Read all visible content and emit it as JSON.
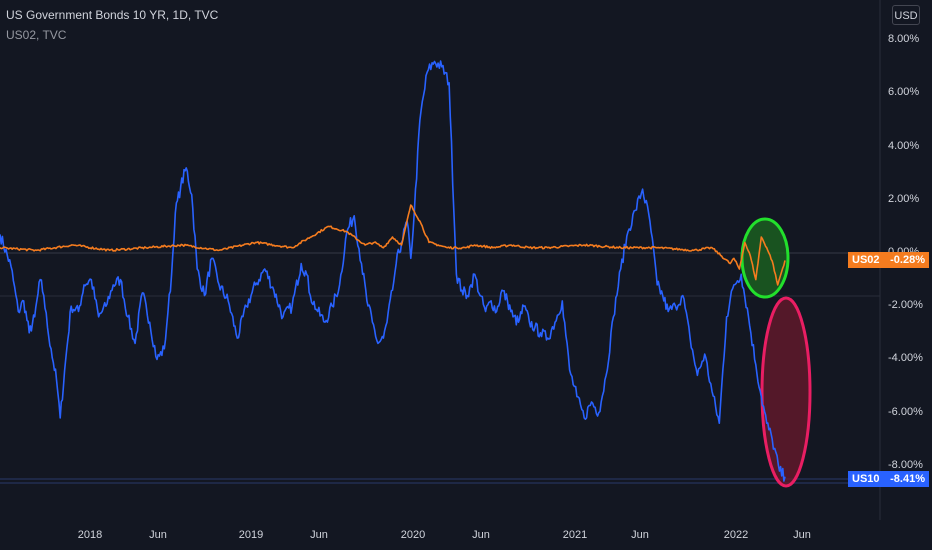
{
  "legend": {
    "title": "US Government Bonds 10 YR, 1D, TVC",
    "subtitle": "US02, TVC"
  },
  "currency": "USD",
  "price_tags": [
    {
      "name": "US02",
      "value": "-0.28%",
      "color": "#f57c1f"
    },
    {
      "name": "US10",
      "value": "-8.41%",
      "color": "#2962ff"
    }
  ],
  "chart_data": {
    "type": "line",
    "y_ticks": [
      "8.00%",
      "6.00%",
      "4.00%",
      "2.00%",
      "0.00%",
      "-2.00%",
      "-4.00%",
      "-6.00%",
      "-8.00%"
    ],
    "x_ticks": [
      "2018",
      "Jun",
      "2019",
      "Jun",
      "2020",
      "Jun",
      "2021",
      "Jun",
      "2022",
      "Jun"
    ],
    "ylim": [
      -9.5,
      8.5
    ],
    "grid": false,
    "series": [
      {
        "name": "US10",
        "color": "#2962ff",
        "x": [
          0,
          0.06,
          0.1,
          0.13,
          0.16,
          0.19,
          0.22,
          0.24,
          0.26,
          0.28,
          0.31,
          0.33,
          0.36,
          0.39,
          0.43,
          0.46,
          0.5,
          0.54,
          0.58,
          0.62,
          0.66,
          0.7,
          0.74,
          0.78,
          0.82,
          0.86,
          0.9,
          0.92,
          0.94,
          0.96,
          0.99,
          1.02,
          1.05,
          1.08,
          1.12,
          1.16,
          1.2,
          1.25,
          1.3,
          1.35,
          1.4,
          1.45,
          1.5,
          1.55,
          1.6,
          1.65,
          1.68,
          1.7,
          1.74,
          1.78,
          1.82,
          1.86,
          1.9,
          1.94,
          1.98,
          2.01,
          2.04,
          2.07,
          2.1,
          2.12,
          2.15,
          2.17,
          2.2,
          2.23,
          2.25,
          2.27,
          2.3,
          2.34,
          2.38,
          2.42,
          2.46,
          2.5,
          2.53,
          2.56,
          2.58,
          2.6,
          2.63,
          2.66,
          2.69,
          2.72,
          2.75,
          2.78,
          2.81,
          2.84,
          2.87,
          2.9,
          2.93,
          2.96,
          3.0,
          3.04,
          3.08,
          3.12,
          3.16,
          3.2,
          3.24,
          3.28,
          3.32,
          3.36,
          3.4,
          3.44,
          3.48,
          3.52,
          3.56,
          3.6,
          3.63,
          3.66,
          3.7,
          3.74,
          3.78,
          3.82,
          3.86,
          3.9,
          3.94,
          3.98,
          4.02,
          4.06,
          4.1,
          4.14,
          4.17,
          4.2,
          4.23,
          4.27,
          4.3
        ],
        "y": [
          0.7,
          -0.5,
          -2.2,
          -1.8,
          -3.0,
          -2.4,
          -1.0,
          -1.6,
          -2.8,
          -3.6,
          -4.8,
          -6.2,
          -4.0,
          -2.0,
          -2.2,
          -1.2,
          -1.0,
          -2.4,
          -2.0,
          -1.2,
          -1.0,
          -2.4,
          -3.4,
          -1.5,
          -2.6,
          -4.0,
          -3.6,
          -2.2,
          -0.8,
          1.5,
          2.5,
          3.2,
          2.2,
          -0.6,
          -1.6,
          -0.2,
          -1.2,
          -1.8,
          -3.2,
          -2.0,
          -1.2,
          -0.6,
          -1.4,
          -2.4,
          -2.0,
          -0.4,
          -0.8,
          -1.6,
          -2.2,
          -2.6,
          -2.0,
          -1.2,
          0.8,
          1.4,
          -0.4,
          -1.8,
          -2.6,
          -3.4,
          -3.2,
          -2.6,
          -1.4,
          -0.4,
          0.4,
          1.2,
          -0.2,
          1.6,
          5.0,
          6.8,
          7.2,
          7.0,
          6.4,
          -0.8,
          -1.4,
          -1.6,
          -1.2,
          -0.8,
          -1.6,
          -2.2,
          -1.8,
          -2.2,
          -1.4,
          -1.8,
          -2.4,
          -2.6,
          -2.0,
          -2.6,
          -2.8,
          -3.0,
          -3.2,
          -2.6,
          -1.8,
          -4.4,
          -5.4,
          -6.2,
          -5.6,
          -6.0,
          -4.6,
          -2.4,
          -0.6,
          0.8,
          1.6,
          2.4,
          1.2,
          -1.2,
          -1.6,
          -2.2,
          -2.0,
          -1.6,
          -3.2,
          -4.6,
          -3.8,
          -5.2,
          -6.4,
          -2.4,
          -1.2,
          -0.8,
          -2.4,
          -4.2,
          -5.4,
          -6.4,
          -7.0,
          -8.2,
          -8.41
        ],
        "smooth_noise": true
      },
      {
        "name": "US02",
        "color": "#f57c1f",
        "x": [
          0,
          0.2,
          0.4,
          0.6,
          0.8,
          1.0,
          1.2,
          1.4,
          1.6,
          1.8,
          1.9,
          2.0,
          2.05,
          2.1,
          2.15,
          2.2,
          2.25,
          2.3,
          2.35,
          2.4,
          2.45,
          2.5,
          2.55,
          2.6,
          2.7,
          2.8,
          2.9,
          3.0,
          3.2,
          3.4,
          3.6,
          3.8,
          3.9,
          4.0,
          4.02,
          4.05,
          4.08,
          4.11,
          4.14,
          4.17,
          4.2,
          4.23,
          4.26,
          4.3
        ],
        "y": [
          0.2,
          0.1,
          0.3,
          0.1,
          0.2,
          0.3,
          0.1,
          0.4,
          0.2,
          1.0,
          0.8,
          0.3,
          0.4,
          0.2,
          0.6,
          0.3,
          1.8,
          1.2,
          0.4,
          0.3,
          0.2,
          0.2,
          0.2,
          0.3,
          0.2,
          0.3,
          0.2,
          0.2,
          0.3,
          0.2,
          0.2,
          0.1,
          0.2,
          -0.4,
          -0.2,
          -0.6,
          0.4,
          -0.1,
          -1.0,
          0.6,
          0.2,
          -0.3,
          -1.2,
          -0.28
        ]
      }
    ],
    "annotations": [
      {
        "shape": "ellipse",
        "color": "#22e02c",
        "fill": "#1b5e20"
      },
      {
        "shape": "ellipse",
        "color": "#e91e63",
        "fill": "#6b1a2c"
      }
    ]
  }
}
